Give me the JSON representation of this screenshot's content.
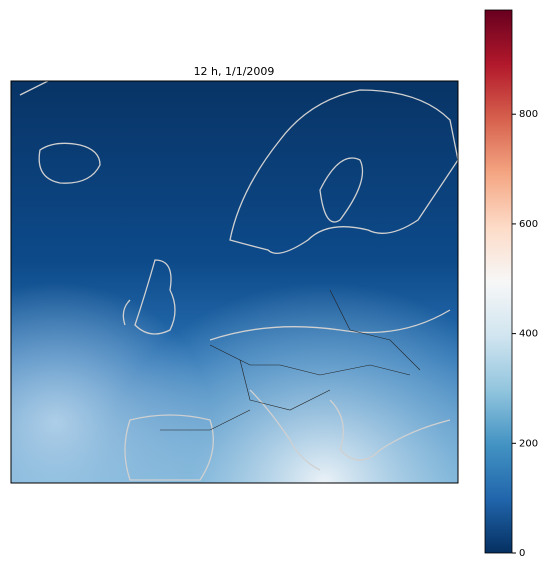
{
  "map": {
    "title": "12 h, 1/1/2009",
    "colorbar": {
      "lim": [
        0,
        990
      ],
      "ticks": [
        0,
        200,
        400,
        600,
        800
      ],
      "colors": [
        "#053061",
        "#2166ac",
        "#4393c3",
        "#92c5de",
        "#d1e5f0",
        "#f7f7f7",
        "#fddbc7",
        "#f4a582",
        "#d6604d",
        "#b2182b",
        "#67001f"
      ]
    }
  }
}
